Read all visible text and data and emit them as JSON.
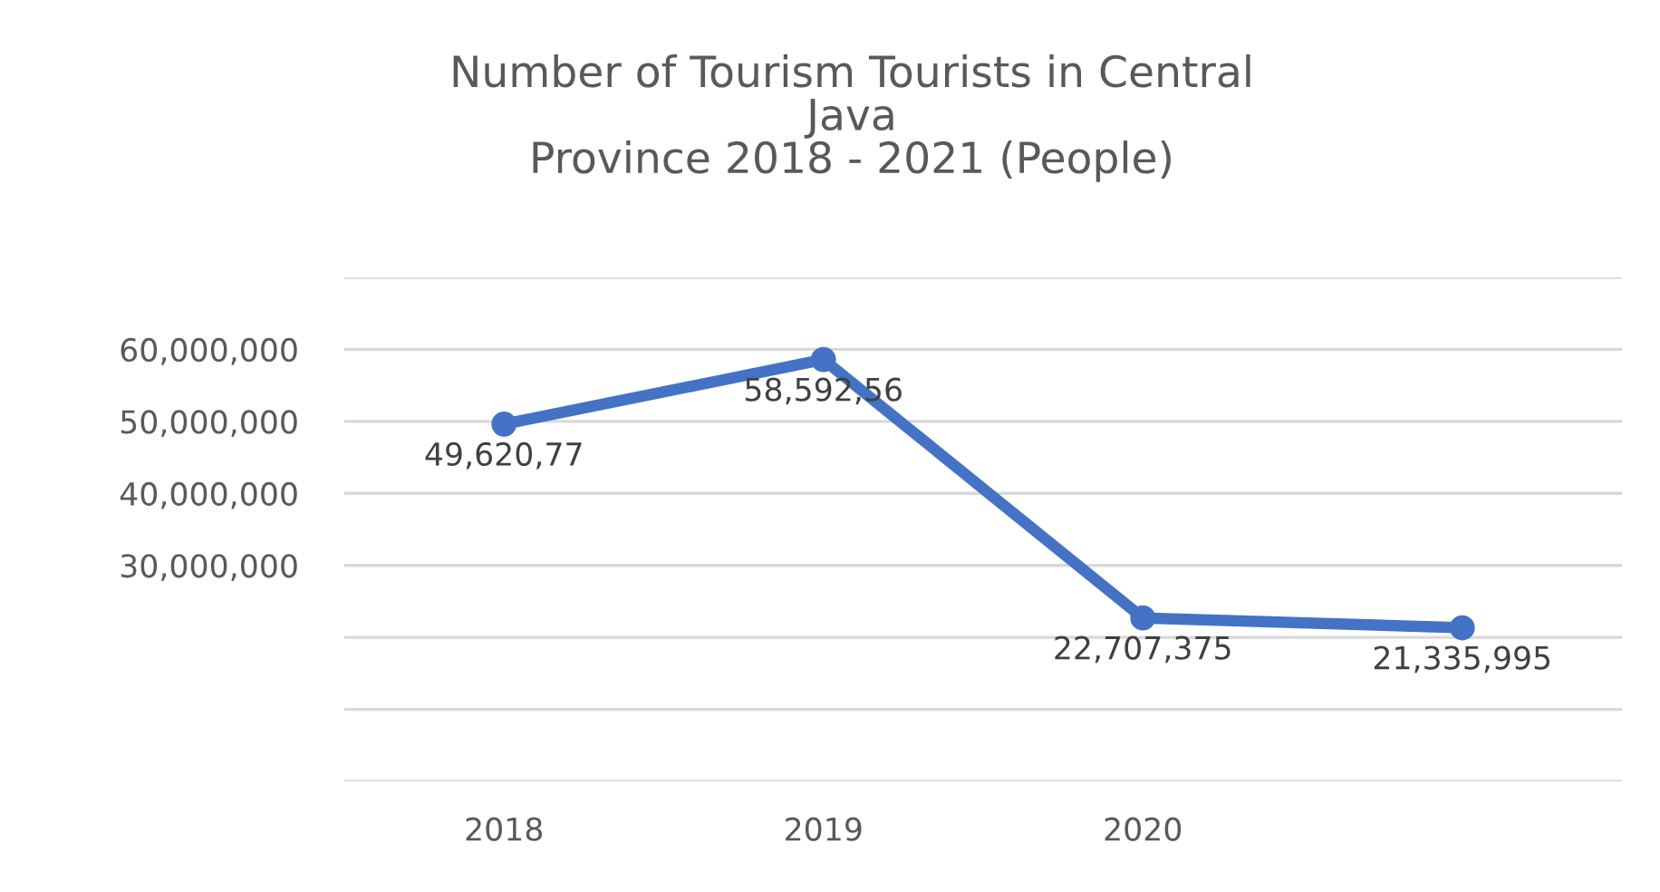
{
  "chart_data": {
    "type": "line",
    "title": "Number of Tourism Tourists in Central\nJava\nProvince 2018 - 2021 (People)",
    "categories": [
      "2018",
      "2019",
      "2020",
      null
    ],
    "series": [
      {
        "color": "#4472c4",
        "values": [
          49620770,
          58592560,
          22707375,
          21335995
        ],
        "value_labels": [
          "49,620,77",
          "58,592,56",
          "22,707,375",
          "21,335,995"
        ]
      }
    ],
    "ylim": [
      0,
      70000000
    ],
    "yticks": [
      {
        "value": 0,
        "label": null
      },
      {
        "value": 10000000,
        "label": null
      },
      {
        "value": 20000000,
        "label": null
      },
      {
        "value": 30000000,
        "label": "30,000,000"
      },
      {
        "value": 40000000,
        "label": "40,000,000"
      },
      {
        "value": 50000000,
        "label": "50,000,000"
      },
      {
        "value": 60000000,
        "label": "60,000,000"
      },
      {
        "value": 70000000,
        "label": null
      }
    ],
    "grid": "y",
    "marker": "circle",
    "line_style": "solid",
    "legend": false
  }
}
